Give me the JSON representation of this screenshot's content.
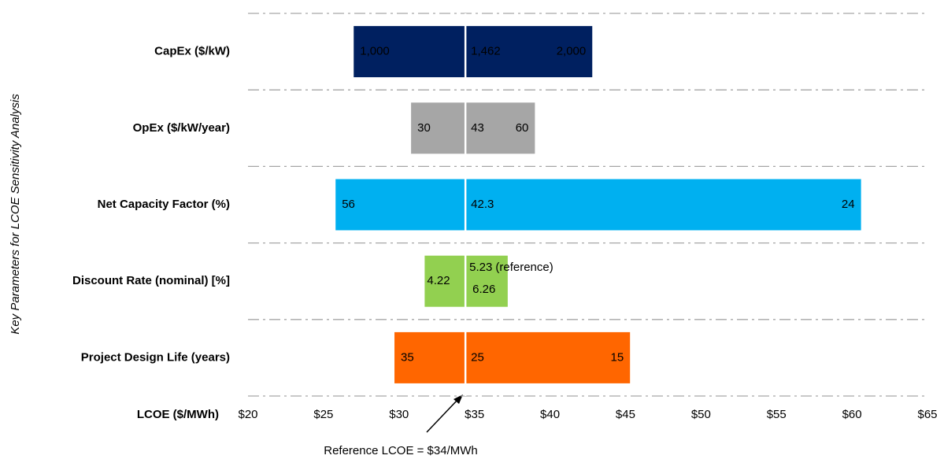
{
  "chart_data": {
    "type": "tornado",
    "y_axis_label": "Key Parameters for LCOE Sensitivity Analysis",
    "x_axis_label": "LCOE ($/MWh)",
    "annotation": "Reference LCOE = $34/MWh",
    "reference_note": "(reference)",
    "categories": [
      "CapEx ($/kW)",
      "OpEx ($/kW/year)",
      "Net Capacity Factor (%)",
      "Discount Rate (nominal) [%]",
      "Project Design Life (years)"
    ],
    "reference": 34.4,
    "low": [
      27.0,
      30.8,
      25.8,
      31.7,
      29.7
    ],
    "high": [
      42.8,
      39.0,
      60.6,
      37.2,
      45.3
    ],
    "bar_labels": [
      [
        "1,000",
        "1,462",
        "2,000"
      ],
      [
        "30",
        "43",
        "60"
      ],
      [
        "56",
        "42.3",
        "24"
      ],
      [
        "4.22",
        "5.23",
        "6.26"
      ],
      [
        "35",
        "25",
        "15"
      ]
    ],
    "colors": [
      "#002060",
      "#a6a6a6",
      "#00b0f0",
      "#92d050",
      "#ff6600"
    ],
    "text_colors": [
      "#ffffff",
      "#000000",
      "#ffffff",
      "#000000",
      "#ffffff"
    ],
    "xlim": [
      20,
      65
    ],
    "xticks": [
      {
        "value": 20,
        "label": "$20"
      },
      {
        "value": 25,
        "label": "$25"
      },
      {
        "value": 30,
        "label": "$30"
      },
      {
        "value": 35,
        "label": "$35"
      },
      {
        "value": 40,
        "label": "$40"
      },
      {
        "value": 45,
        "label": "$45"
      },
      {
        "value": 50,
        "label": "$50"
      },
      {
        "value": 55,
        "label": "$55"
      },
      {
        "value": 60,
        "label": "$60"
      },
      {
        "value": 65,
        "label": "$65"
      }
    ]
  }
}
